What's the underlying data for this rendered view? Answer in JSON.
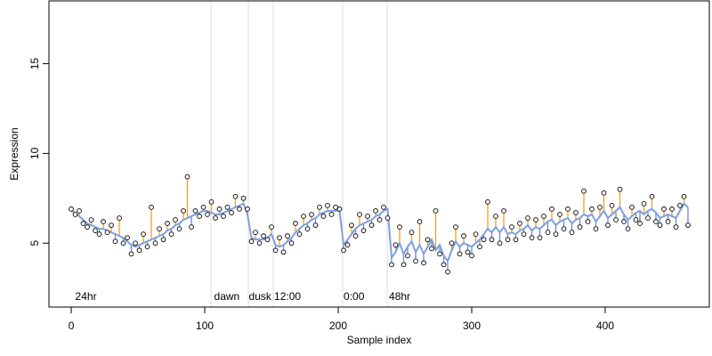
{
  "chart_data": {
    "type": "scatter",
    "xlabel": "Sample index",
    "ylabel": "Expression",
    "xlim": [
      -16.7,
      478
    ],
    "ylim": [
      1.44,
      18.5
    ],
    "xticks": [
      0,
      100,
      200,
      300,
      400
    ],
    "yticks": [
      5,
      10,
      15
    ],
    "colors": {
      "fit": "#7f9fdc",
      "above": "#f0a020",
      "below": "#6688d8",
      "vline": "#dddddd",
      "annotation": "#aaaaaa",
      "point_fill": "#ffffff",
      "point_stroke": "#000000"
    },
    "vlines": [
      104.7,
      132.7,
      151.3,
      203.3,
      236.7
    ],
    "annotations": [
      {
        "text": "24hr",
        "x": 3,
        "y": 2
      },
      {
        "text": "dawn",
        "x": 107,
        "y": 2
      },
      {
        "text": "dusk",
        "x": 133,
        "y": 2
      },
      {
        "text": "12:00",
        "x": 152,
        "y": 2
      },
      {
        "text": "0:00",
        "x": 204,
        "y": 2
      },
      {
        "text": "48hr",
        "x": 238,
        "y": 2
      }
    ],
    "x": [
      0,
      3,
      6,
      9,
      12,
      15,
      18,
      21,
      24,
      27,
      30,
      33,
      36,
      39,
      42,
      45,
      48,
      51,
      54,
      57,
      60,
      63,
      66,
      69,
      72,
      75,
      78,
      81,
      84,
      87,
      90,
      93,
      96,
      99,
      102,
      105,
      108,
      111,
      114,
      117,
      120,
      123,
      126,
      129,
      132,
      135,
      138,
      141,
      144,
      147,
      150,
      153,
      156,
      159,
      162,
      165,
      168,
      171,
      174,
      177,
      180,
      183,
      186,
      189,
      192,
      195,
      198,
      201,
      204,
      207,
      210,
      213,
      216,
      219,
      222,
      225,
      228,
      231,
      234,
      237,
      240,
      243,
      246,
      249,
      252,
      255,
      258,
      261,
      264,
      267,
      270,
      273,
      276,
      279,
      282,
      285,
      288,
      291,
      294,
      297,
      300,
      303,
      306,
      309,
      312,
      315,
      318,
      321,
      324,
      327,
      330,
      333,
      336,
      339,
      342,
      345,
      348,
      351,
      354,
      357,
      360,
      363,
      366,
      369,
      372,
      375,
      378,
      381,
      384,
      387,
      390,
      393,
      396,
      399,
      402,
      405,
      408,
      411,
      414,
      417,
      420,
      423,
      426,
      429,
      432,
      435,
      438,
      441,
      444,
      447,
      450,
      453,
      456,
      459,
      462
    ],
    "values": [
      6.9,
      6.6,
      6.8,
      6.1,
      5.9,
      6.3,
      5.7,
      5.5,
      6.2,
      5.6,
      6.0,
      5.1,
      6.4,
      5.0,
      5.3,
      4.4,
      5.0,
      4.6,
      5.5,
      4.8,
      7.0,
      5.0,
      5.8,
      5.2,
      6.1,
      5.5,
      6.3,
      5.8,
      6.8,
      8.7,
      5.9,
      6.8,
      6.5,
      7.0,
      6.6,
      7.3,
      6.4,
      6.9,
      6.5,
      7.0,
      6.7,
      7.6,
      6.9,
      7.5,
      6.9,
      5.1,
      5.6,
      5.0,
      5.4,
      5.2,
      5.9,
      4.6,
      5.3,
      4.5,
      5.4,
      5.0,
      6.1,
      5.5,
      6.5,
      5.8,
      6.6,
      6.0,
      7.0,
      6.5,
      7.1,
      6.6,
      7.0,
      6.9,
      4.6,
      4.9,
      6.0,
      5.4,
      6.6,
      5.7,
      6.5,
      6.0,
      6.8,
      6.3,
      7.0,
      6.4,
      3.8,
      4.9,
      5.9,
      3.8,
      4.3,
      5.6,
      4.0,
      6.2,
      3.9,
      5.2,
      4.7,
      6.8,
      4.4,
      3.8,
      3.4,
      5.0,
      5.9,
      4.4,
      5.4,
      4.5,
      4.3,
      5.5,
      4.8,
      5.2,
      7.3,
      5.2,
      6.5,
      5.0,
      6.8,
      5.2,
      5.9,
      5.2,
      6.1,
      5.5,
      6.4,
      5.3,
      6.3,
      5.3,
      6.5,
      5.6,
      6.9,
      5.5,
      6.6,
      5.8,
      6.9,
      5.6,
      6.7,
      5.9,
      7.9,
      6.2,
      6.9,
      5.8,
      7.0,
      7.8,
      6.0,
      7.1,
      6.3,
      8.0,
      6.2,
      5.8,
      7.0,
      6.3,
      6.1,
      7.2,
      6.4,
      7.6,
      6.2,
      6.0,
      6.9,
      6.2,
      6.9,
      5.9,
      7.1,
      7.6,
      6.0
    ],
    "fit": [
      6.8,
      6.7,
      6.5,
      6.3,
      6.1,
      6.0,
      5.9,
      5.8,
      5.8,
      5.7,
      5.6,
      5.5,
      5.4,
      5.3,
      5.1,
      4.9,
      4.8,
      4.9,
      5.0,
      5.1,
      5.2,
      5.3,
      5.4,
      5.5,
      5.7,
      5.8,
      6.0,
      6.1,
      6.3,
      6.4,
      6.5,
      6.6,
      6.7,
      6.8,
      6.8,
      6.7,
      6.6,
      6.6,
      6.7,
      6.8,
      6.9,
      7.0,
      7.1,
      7.2,
      6.6,
      5.3,
      5.2,
      5.2,
      5.2,
      5.3,
      5.5,
      4.9,
      4.8,
      4.9,
      5.1,
      5.3,
      5.6,
      5.8,
      6.0,
      6.1,
      6.3,
      6.4,
      6.6,
      6.7,
      6.8,
      6.8,
      6.8,
      6.8,
      4.9,
      5.2,
      5.5,
      5.8,
      6.0,
      6.1,
      6.2,
      6.3,
      6.5,
      6.6,
      6.8,
      6.9,
      4.2,
      4.5,
      5.0,
      4.4,
      4.8,
      5.1,
      4.5,
      4.9,
      4.4,
      4.8,
      5.2,
      4.6,
      4.9,
      4.3,
      4.0,
      4.6,
      5.1,
      4.8,
      5.0,
      4.9,
      4.8,
      5.0,
      5.2,
      5.5,
      5.8,
      5.6,
      5.9,
      5.6,
      5.9,
      5.5,
      5.6,
      5.5,
      5.7,
      5.8,
      6.0,
      5.7,
      5.9,
      5.8,
      6.0,
      6.2,
      6.3,
      6.0,
      6.2,
      6.3,
      6.4,
      6.1,
      6.3,
      6.4,
      6.6,
      6.5,
      6.6,
      6.2,
      6.5,
      6.8,
      6.4,
      6.6,
      6.8,
      7.0,
      6.6,
      6.3,
      6.5,
      6.7,
      6.8,
      6.6,
      6.8,
      6.9,
      6.7,
      6.4,
      6.5,
      6.6,
      6.5,
      6.4,
      6.8,
      7.2,
      7.0
    ]
  }
}
